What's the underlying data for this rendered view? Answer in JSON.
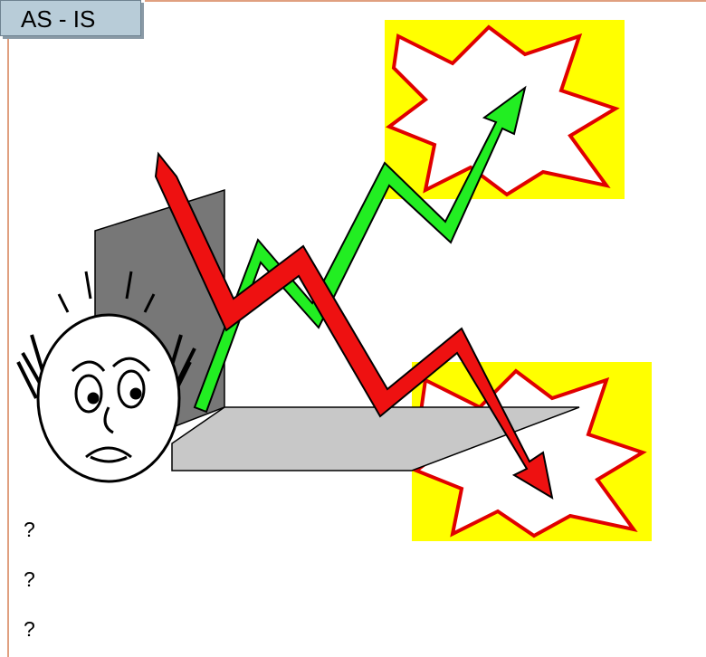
{
  "header": {
    "title": "AS - IS"
  },
  "bullets": [
    "?",
    "?",
    "?"
  ]
}
